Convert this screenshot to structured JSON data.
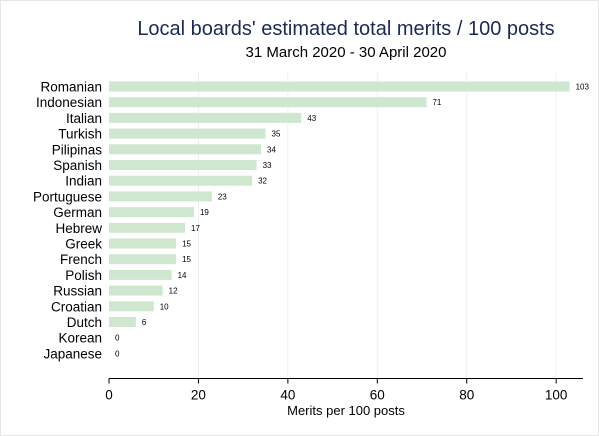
{
  "chart_data": {
    "type": "bar",
    "orientation": "horizontal",
    "title": "Local boards' estimated total merits / 100 posts",
    "subtitle": "31 March 2020 - 30 April 2020",
    "xlabel": "Merits per 100 posts",
    "ylabel": "",
    "xlim": [
      0,
      106
    ],
    "xticks": [
      0,
      20,
      40,
      60,
      80,
      100
    ],
    "grid": true,
    "legend": "none",
    "bar_color": "#cfe6cf",
    "title_color": "#1a2a55",
    "categories": [
      "Romanian",
      "Indonesian",
      "Italian",
      "Turkish",
      "Pilipinas",
      "Spanish",
      "Indian",
      "Portuguese",
      "German",
      "Hebrew",
      "Greek",
      "French",
      "Polish",
      "Russian",
      "Croatian",
      "Dutch",
      "Korean",
      "Japanese"
    ],
    "values": [
      103,
      71,
      43,
      35,
      34,
      33,
      32,
      23,
      19,
      17,
      15,
      15,
      14,
      12,
      10,
      6,
      0,
      0
    ]
  }
}
